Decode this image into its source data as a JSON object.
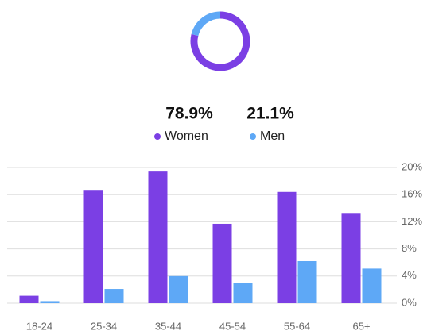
{
  "chart_data": [
    {
      "type": "pie",
      "donut": true,
      "categories": [
        "Women",
        "Men"
      ],
      "values": [
        78.9,
        21.1
      ],
      "value_labels": [
        "78.9%",
        "21.1%"
      ],
      "colors": [
        "#7b3fe4",
        "#5ea8f6"
      ]
    },
    {
      "type": "bar",
      "categories": [
        "18-24",
        "25-34",
        "35-44",
        "45-54",
        "55-64",
        "65+"
      ],
      "series": [
        {
          "color": "#7b3fe4",
          "values": [
            1.1,
            16.7,
            19.4,
            11.7,
            16.4,
            13.3
          ]
        },
        {
          "color": "#5ea8f6",
          "values": [
            0.3,
            2.1,
            4.0,
            3.0,
            6.2,
            5.1
          ]
        }
      ],
      "ylim": [
        0,
        20
      ],
      "yticks": [
        {
          "value": 0,
          "label": "0%"
        },
        {
          "value": 4,
          "label": "4%"
        },
        {
          "value": 8,
          "label": "8%"
        },
        {
          "value": 12,
          "label": "12%"
        },
        {
          "value": 16,
          "label": "16%"
        },
        {
          "value": 20,
          "label": "20%"
        }
      ],
      "grid": true
    }
  ]
}
